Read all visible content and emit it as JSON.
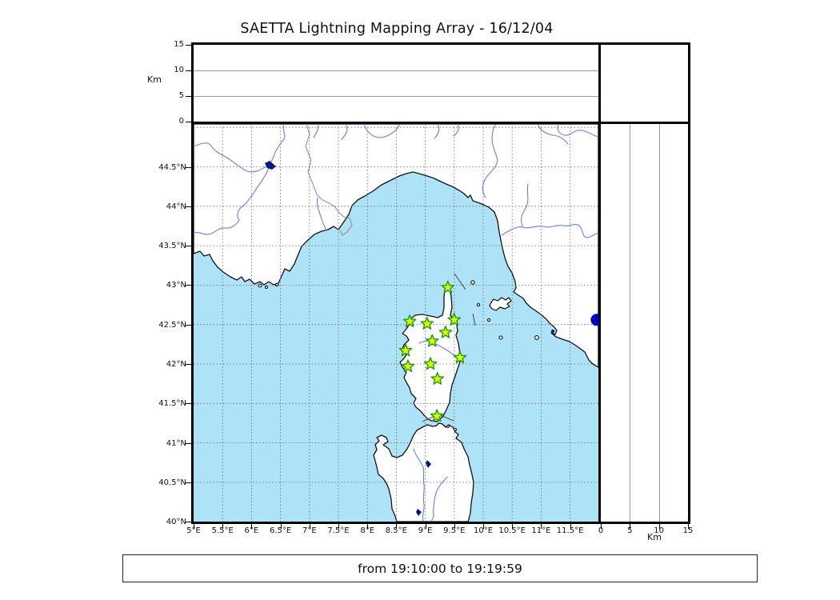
{
  "title": "SAETTA Lightning Mapping Array - 16/12/04",
  "footer": {
    "time_range_label": "from 19:10:00 to 19:19:59"
  },
  "altitude_panel": {
    "axis_label": "Km",
    "tick_labels": [
      "0",
      "5",
      "10",
      "15"
    ],
    "range_km": [
      0,
      15
    ]
  },
  "right_panel": {
    "axis_label": "Km",
    "tick_labels": [
      "0",
      "5",
      "10",
      "15"
    ],
    "range_km": [
      0,
      15
    ]
  },
  "map_panel": {
    "lon_tick_labels": [
      "5°E",
      "5.5°E",
      "6°E",
      "6.5°E",
      "7°E",
      "7.5°E",
      "8°E",
      "8.5°E",
      "9°E",
      "9.5°E",
      "10°E",
      "10.5°E",
      "11°E",
      "11.5°E"
    ],
    "lat_tick_labels": [
      "44.5°N",
      "44°N",
      "43.5°N",
      "43°N",
      "42.5°N",
      "42°N",
      "41.5°N",
      "41°N",
      "40.5°N",
      "40°N"
    ],
    "stations": [
      {
        "lon": 9.39,
        "lat": 42.97
      },
      {
        "lon": 8.73,
        "lat": 42.54
      },
      {
        "lon": 9.03,
        "lat": 42.51
      },
      {
        "lon": 9.5,
        "lat": 42.56
      },
      {
        "lon": 9.35,
        "lat": 42.4
      },
      {
        "lon": 9.12,
        "lat": 42.29
      },
      {
        "lon": 8.66,
        "lat": 42.17
      },
      {
        "lon": 9.6,
        "lat": 42.08
      },
      {
        "lon": 9.09,
        "lat": 42.0
      },
      {
        "lon": 8.7,
        "lat": 41.97
      },
      {
        "lon": 9.21,
        "lat": 41.81
      },
      {
        "lon": 9.2,
        "lat": 41.34
      }
    ],
    "event_points": [
      {
        "lon": 11.96,
        "lat": 42.56
      }
    ]
  },
  "colors": {
    "sea": "#aee3f7",
    "land": "#ffffff",
    "coastline": "#111111",
    "river": "#6b7cf2",
    "country_border": "#888888",
    "grid": "#666666",
    "panel_grid": "#999999",
    "station_fill": "#e8f400",
    "station_edge": "#14a014",
    "event_dot": "#0000cc",
    "lake": "#00187e"
  }
}
